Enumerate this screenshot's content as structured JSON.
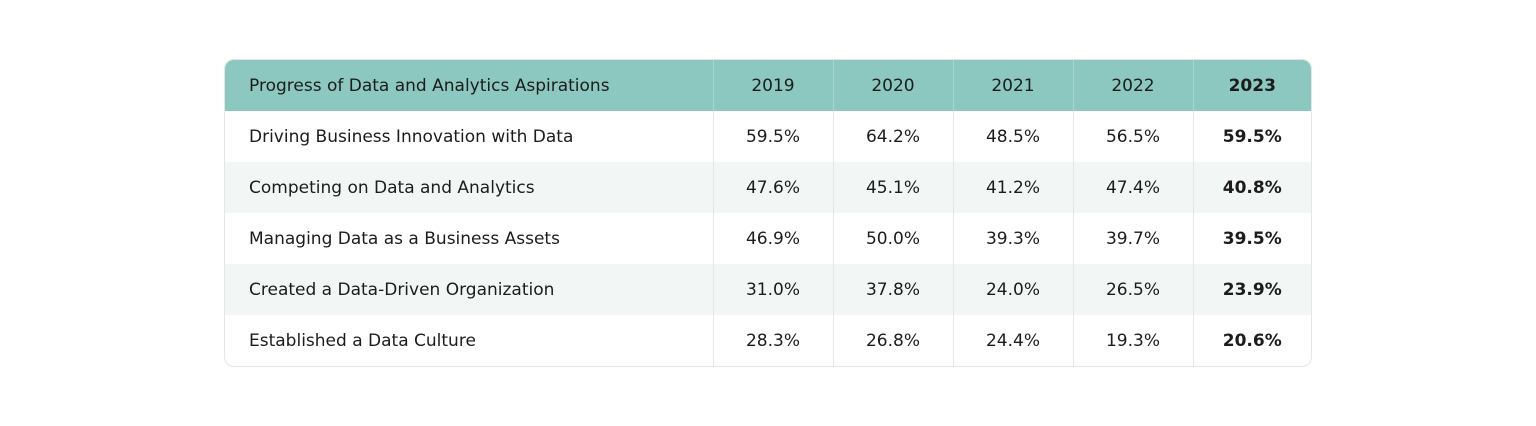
{
  "chart_data": {
    "type": "table",
    "title": "",
    "columns": [
      "Progress of Data and Analytics Aspirations",
      "2019",
      "2020",
      "2021",
      "2022",
      "2023"
    ],
    "rows": [
      {
        "label": "Driving Business Innovation with Data",
        "values": [
          "59.5%",
          "64.2%",
          "48.5%",
          "56.5%",
          "59.5%"
        ]
      },
      {
        "label": "Competing on Data and Analytics",
        "values": [
          "47.6%",
          "45.1%",
          "41.2%",
          "47.4%",
          "40.8%"
        ]
      },
      {
        "label": "Managing Data as a Business Assets",
        "values": [
          "46.9%",
          "50.0%",
          "39.3%",
          "39.7%",
          "39.5%"
        ]
      },
      {
        "label": "Created a Data-Driven Organization",
        "values": [
          "31.0%",
          "37.8%",
          "24.0%",
          "26.5%",
          "23.9%"
        ]
      },
      {
        "label": "Established a Data Culture",
        "values": [
          "28.3%",
          "26.8%",
          "24.4%",
          "19.3%",
          "20.6%"
        ]
      }
    ],
    "highlighted_column": "2023"
  },
  "colors": {
    "header_bg": "#8cc8bf",
    "stripe_bg": "#f2f7f6",
    "border": "#e3e6e5"
  }
}
